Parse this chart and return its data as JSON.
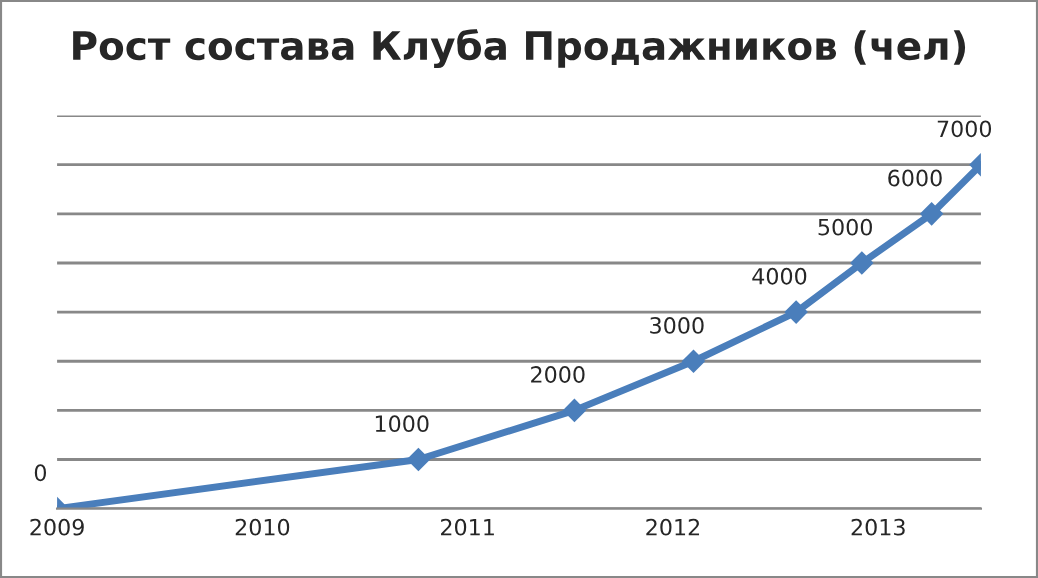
{
  "chart_data": {
    "type": "line",
    "title": "Рост состава Клуба Продажников (чел)",
    "x": [
      2009.0,
      2010.76,
      2011.52,
      2012.1,
      2012.6,
      2012.92,
      2013.26,
      2013.5
    ],
    "series": [
      {
        "color": "#4a7ebb",
        "values": [
          0,
          1000,
          2000,
          3000,
          4000,
          5000,
          6000,
          7000
        ]
      }
    ],
    "xlim": [
      2009,
      2013.5
    ],
    "xticks": [
      2009,
      2010,
      2011,
      2012,
      2013
    ],
    "ylim": [
      0,
      8000
    ],
    "yticks": [
      {
        "value": 0,
        "label": null
      },
      {
        "value": 1000,
        "label": null
      },
      {
        "value": 2000,
        "label": null
      },
      {
        "value": 3000,
        "label": null
      },
      {
        "value": 4000,
        "label": null
      },
      {
        "value": 5000,
        "label": null
      },
      {
        "value": 6000,
        "label": null
      },
      {
        "value": 7000,
        "label": null
      },
      {
        "value": 8000,
        "label": null
      }
    ],
    "grid": "y",
    "marker": "diamond",
    "line_style": "solid",
    "data_labels": true
  }
}
